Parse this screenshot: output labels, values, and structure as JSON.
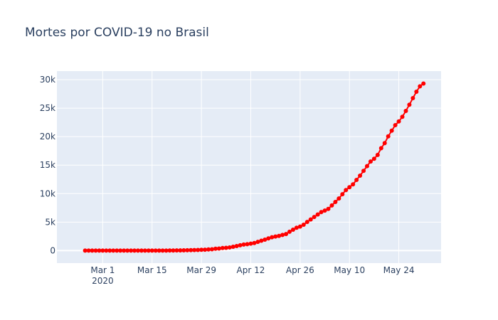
{
  "chart_data": {
    "type": "scatter",
    "mode": "lines+markers",
    "title": "Mortes por COVID-19 no Brasil",
    "xlabel": "",
    "ylabel": "",
    "colors": {
      "series": "#ff0000",
      "plot_background": "#e5ecf6",
      "grid": "#ffffff",
      "text": "#2a3f5f"
    },
    "grid": true,
    "legend": "none",
    "xlim": [
      "2020-02-17",
      "2020-06-05"
    ],
    "ylim": [
      -2200,
      31500
    ],
    "x_ticks": [
      {
        "value": "2020-03-01",
        "label": "Mar 1",
        "sublabel": "2020"
      },
      {
        "value": "2020-03-15",
        "label": "Mar 15"
      },
      {
        "value": "2020-03-29",
        "label": "Mar 29"
      },
      {
        "value": "2020-04-12",
        "label": "Apr 12"
      },
      {
        "value": "2020-04-26",
        "label": "Apr 26"
      },
      {
        "value": "2020-05-10",
        "label": "May 10"
      },
      {
        "value": "2020-05-24",
        "label": "May 24"
      }
    ],
    "y_ticks": [
      {
        "value": 0,
        "label": "0"
      },
      {
        "value": 5000,
        "label": "5k"
      },
      {
        "value": 10000,
        "label": "10k"
      },
      {
        "value": 15000,
        "label": "15k"
      },
      {
        "value": 20000,
        "label": "20k"
      },
      {
        "value": 25000,
        "label": "25k"
      },
      {
        "value": 30000,
        "label": "30k"
      }
    ],
    "series": [
      {
        "x": [
          "2020-02-25",
          "2020-02-26",
          "2020-02-27",
          "2020-02-28",
          "2020-02-29",
          "2020-03-01",
          "2020-03-02",
          "2020-03-03",
          "2020-03-04",
          "2020-03-05",
          "2020-03-06",
          "2020-03-07",
          "2020-03-08",
          "2020-03-09",
          "2020-03-10",
          "2020-03-11",
          "2020-03-12",
          "2020-03-13",
          "2020-03-14",
          "2020-03-15",
          "2020-03-16",
          "2020-03-17",
          "2020-03-18",
          "2020-03-19",
          "2020-03-20",
          "2020-03-21",
          "2020-03-22",
          "2020-03-23",
          "2020-03-24",
          "2020-03-25",
          "2020-03-26",
          "2020-03-27",
          "2020-03-28",
          "2020-03-29",
          "2020-03-30",
          "2020-03-31",
          "2020-04-01",
          "2020-04-02",
          "2020-04-03",
          "2020-04-04",
          "2020-04-05",
          "2020-04-06",
          "2020-04-07",
          "2020-04-08",
          "2020-04-09",
          "2020-04-10",
          "2020-04-11",
          "2020-04-12",
          "2020-04-13",
          "2020-04-14",
          "2020-04-15",
          "2020-04-16",
          "2020-04-17",
          "2020-04-18",
          "2020-04-19",
          "2020-04-20",
          "2020-04-21",
          "2020-04-22",
          "2020-04-23",
          "2020-04-24",
          "2020-04-25",
          "2020-04-26",
          "2020-04-27",
          "2020-04-28",
          "2020-04-29",
          "2020-04-30",
          "2020-05-01",
          "2020-05-02",
          "2020-05-03",
          "2020-05-04",
          "2020-05-05",
          "2020-05-06",
          "2020-05-07",
          "2020-05-08",
          "2020-05-09",
          "2020-05-10",
          "2020-05-11",
          "2020-05-12",
          "2020-05-13",
          "2020-05-14",
          "2020-05-15",
          "2020-05-16",
          "2020-05-17",
          "2020-05-18",
          "2020-05-19",
          "2020-05-20",
          "2020-05-21",
          "2020-05-22",
          "2020-05-23",
          "2020-05-24",
          "2020-05-25",
          "2020-05-26",
          "2020-05-27",
          "2020-05-28",
          "2020-05-29",
          "2020-05-30",
          "2020-05-31"
        ],
        "y": [
          0,
          0,
          0,
          0,
          0,
          0,
          0,
          0,
          0,
          0,
          0,
          0,
          0,
          0,
          0,
          0,
          0,
          0,
          0,
          0,
          0,
          1,
          4,
          7,
          11,
          18,
          25,
          34,
          46,
          59,
          77,
          92,
          111,
          136,
          159,
          201,
          240,
          324,
          359,
          445,
          486,
          553,
          667,
          800,
          941,
          1056,
          1124,
          1223,
          1328,
          1532,
          1736,
          1924,
          2141,
          2347,
          2462,
          2575,
          2741,
          2906,
          3313,
          3670,
          4016,
          4205,
          4543,
          5017,
          5466,
          5901,
          6329,
          6750,
          7025,
          7321,
          7921,
          8536,
          9146,
          9897,
          10627,
          11123,
          11625,
          12400,
          13149,
          13993,
          14817,
          15633,
          16118,
          16792,
          17971,
          18859,
          20047,
          21048,
          22013,
          22666,
          23473,
          24512,
          25598,
          26754,
          27878,
          28834,
          29314
        ]
      }
    ]
  }
}
